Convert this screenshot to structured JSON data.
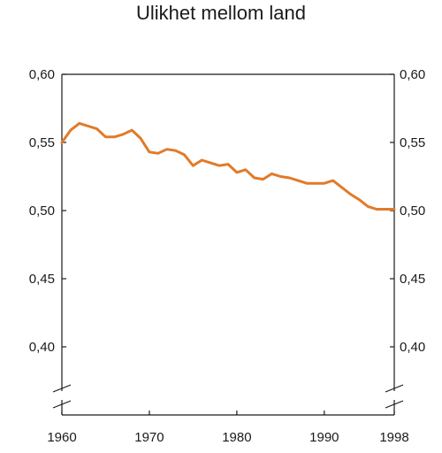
{
  "chart_data": {
    "type": "line",
    "title": "Ulikhet mellom land",
    "xlabel": "",
    "ylabel": "",
    "xlim": [
      1960,
      1998
    ],
    "ylim": [
      0.4,
      0.6
    ],
    "x_ticks": [
      1960,
      1970,
      1980,
      1990,
      1998
    ],
    "x_tick_labels": [
      "1960",
      "1970",
      "1980",
      "1990",
      "1998"
    ],
    "y_ticks": [
      0.4,
      0.45,
      0.5,
      0.55,
      0.6
    ],
    "y_tick_labels": [
      "0,40",
      "0,45",
      "0,50",
      "0,55",
      "0,60"
    ],
    "axis_break": true,
    "grid": false,
    "line_color": "#e07b2a",
    "series": [
      {
        "x": [
          1960,
          1961,
          1962,
          1963,
          1964,
          1965,
          1966,
          1967,
          1968,
          1969,
          1970,
          1971,
          1972,
          1973,
          1974,
          1975,
          1976,
          1977,
          1978,
          1979,
          1980,
          1981,
          1982,
          1983,
          1984,
          1985,
          1986,
          1987,
          1988,
          1989,
          1990,
          1991,
          1992,
          1993,
          1994,
          1995,
          1996,
          1997,
          1998
        ],
        "values": [
          0.55,
          0.559,
          0.564,
          0.562,
          0.56,
          0.554,
          0.554,
          0.556,
          0.559,
          0.553,
          0.543,
          0.542,
          0.545,
          0.544,
          0.541,
          0.533,
          0.537,
          0.535,
          0.533,
          0.534,
          0.528,
          0.53,
          0.524,
          0.523,
          0.527,
          0.525,
          0.524,
          0.522,
          0.52,
          0.52,
          0.52,
          0.522,
          0.517,
          0.512,
          0.508,
          0.503,
          0.501,
          0.501,
          0.501
        ]
      }
    ]
  }
}
